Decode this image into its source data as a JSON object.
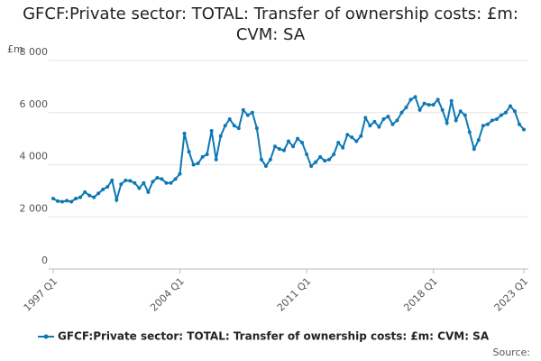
{
  "chart_data": {
    "type": "line",
    "title": "GFCF:Private sector: TOTAL: Transfer of ownership costs: £m: CVM: SA",
    "y_unit": "£m",
    "source": "Source:",
    "categories": [
      "1997 Q1",
      null,
      null,
      null,
      null,
      null,
      null,
      null,
      null,
      null,
      null,
      null,
      null,
      null,
      null,
      null,
      null,
      null,
      null,
      null,
      null,
      null,
      null,
      null,
      null,
      null,
      null,
      null,
      "2004 Q1",
      null,
      null,
      null,
      null,
      null,
      null,
      null,
      null,
      null,
      null,
      null,
      null,
      null,
      null,
      null,
      null,
      null,
      null,
      null,
      null,
      null,
      null,
      null,
      null,
      null,
      null,
      null,
      "2011 Q1",
      null,
      null,
      null,
      null,
      null,
      null,
      null,
      null,
      null,
      null,
      null,
      null,
      null,
      null,
      null,
      null,
      null,
      null,
      null,
      null,
      null,
      null,
      null,
      null,
      null,
      null,
      null,
      "2018 Q1",
      null,
      null,
      null,
      null,
      null,
      null,
      null,
      null,
      null,
      null,
      null,
      null,
      null,
      null,
      null,
      null,
      null,
      null,
      null,
      "2023 Q1"
    ],
    "series": [
      {
        "name": "GFCF:Private sector: TOTAL: Transfer of ownership costs: £m: CVM: SA",
        "color": "#0e78b4",
        "values": [
          2700,
          2600,
          2580,
          2620,
          2580,
          2700,
          2750,
          2950,
          2820,
          2750,
          2900,
          3050,
          3150,
          3400,
          2650,
          3250,
          3400,
          3380,
          3300,
          3100,
          3300,
          2950,
          3350,
          3500,
          3450,
          3300,
          3300,
          3450,
          3650,
          5200,
          4500,
          4000,
          4050,
          4300,
          4400,
          5300,
          4200,
          5100,
          5500,
          5750,
          5500,
          5400,
          6100,
          5900,
          6000,
          5400,
          4200,
          3950,
          4200,
          4700,
          4600,
          4550,
          4900,
          4700,
          5000,
          4850,
          4400,
          3950,
          4100,
          4300,
          4150,
          4200,
          4400,
          4850,
          4650,
          5150,
          5050,
          4900,
          5100,
          5800,
          5500,
          5650,
          5450,
          5750,
          5850,
          5550,
          5700,
          6000,
          6200,
          6500,
          6600,
          6100,
          6350,
          6300,
          6300,
          6500,
          6100,
          5600,
          6450,
          5700,
          6050,
          5900,
          5250,
          4600,
          4950,
          5500,
          5550,
          5700,
          5750,
          5900,
          6000,
          6250,
          6050,
          5550,
          5350
        ]
      }
    ],
    "ylim": [
      0,
      8000
    ],
    "yticks": [
      0,
      {
        "value": 2000,
        "label": "2 000"
      },
      {
        "value": 4000,
        "label": "4 000"
      },
      {
        "value": 6000,
        "label": "6 000"
      },
      {
        "value": 8000,
        "label": "8 000"
      }
    ],
    "grid": true
  }
}
